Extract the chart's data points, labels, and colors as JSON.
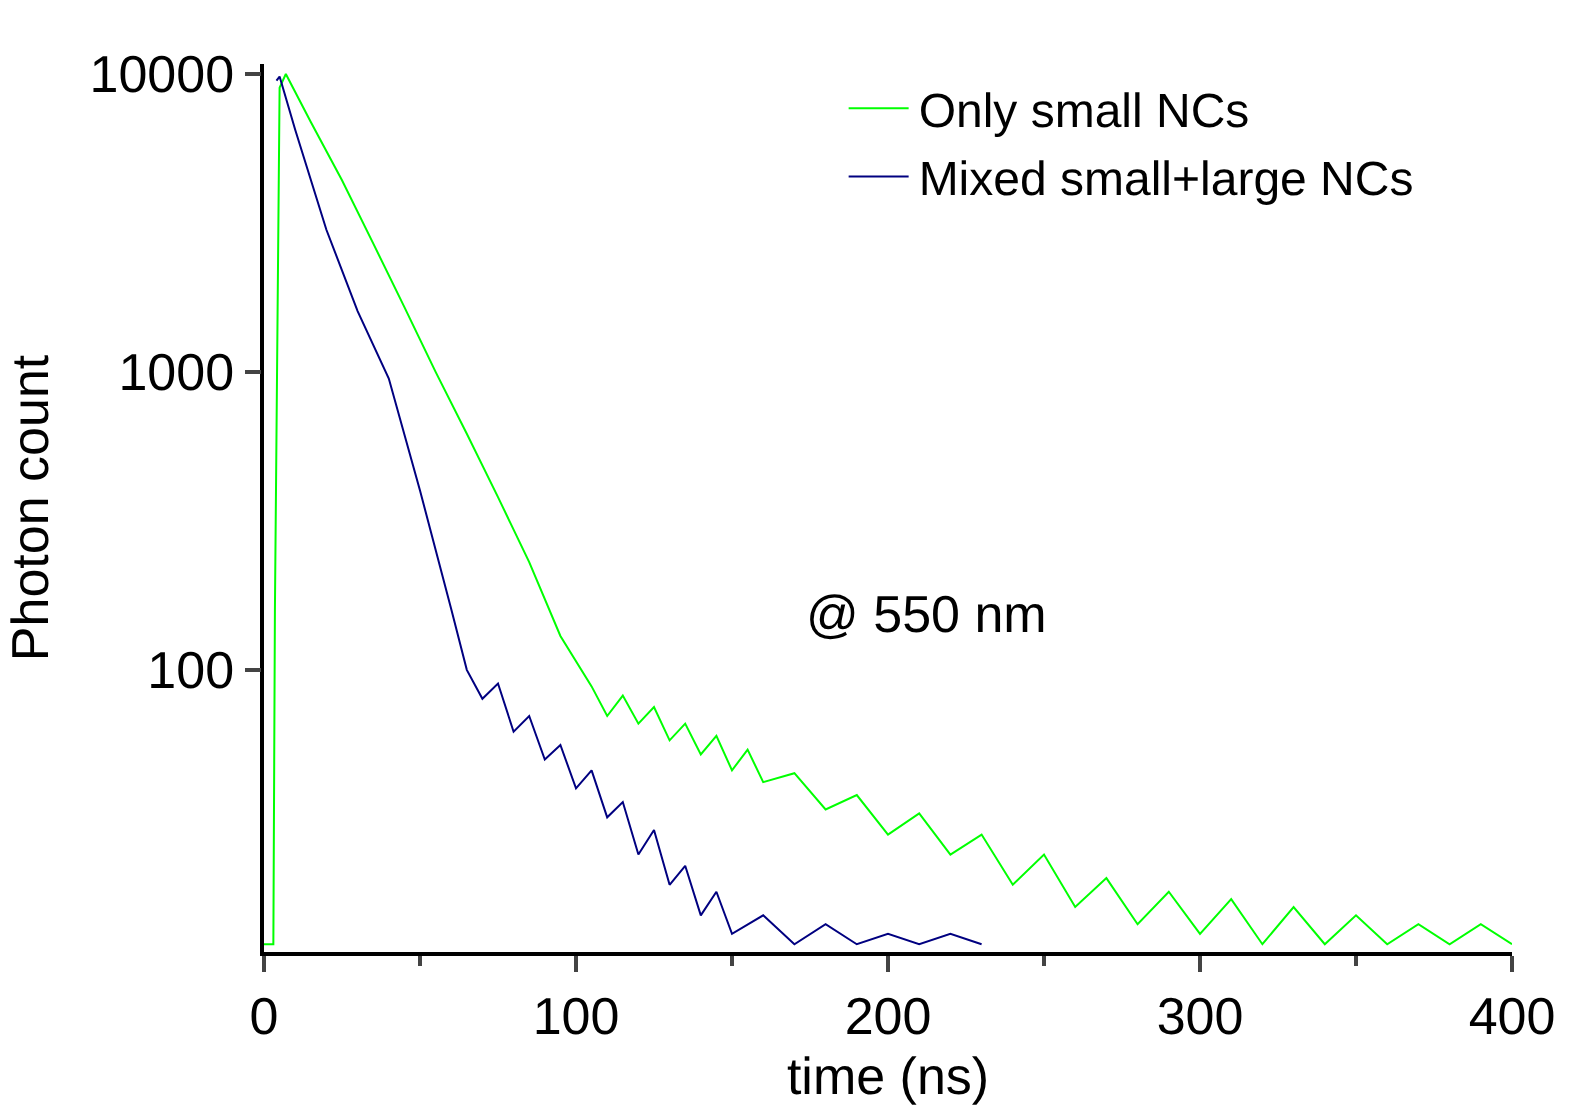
{
  "chart_data": {
    "type": "line",
    "xlabel": "time (ns)",
    "ylabel": "Photon count",
    "log": "y",
    "xlim": [
      0,
      400
    ],
    "xticks": [
      0,
      100,
      200,
      300,
      400
    ],
    "ylim": [
      11.3,
      10800
    ],
    "yticks": [
      100,
      1000,
      10000
    ],
    "legend": "top right",
    "marker": "none",
    "line_style": "solid",
    "annotations": [
      "@ 550 nm"
    ],
    "series": [
      {
        "name": "Only small NCs",
        "color": "#00ff00",
        "x": [
          0,
          3,
          3.5,
          5,
          7,
          15,
          25,
          35,
          45,
          55,
          65,
          75,
          85,
          95,
          105,
          110,
          115,
          120,
          125,
          130,
          135,
          140,
          145,
          150,
          155,
          160,
          170,
          180,
          190,
          200,
          210,
          220,
          230,
          240,
          250,
          260,
          270,
          280,
          290,
          300,
          310,
          320,
          330,
          340,
          350,
          360,
          370,
          380,
          390,
          400
        ],
        "values": [
          12,
          12,
          160,
          9000,
          10000,
          6900,
          4400,
          2700,
          1650,
          1000,
          620,
          380,
          230,
          130,
          88,
          70,
          82,
          66,
          75,
          58,
          66,
          52,
          60,
          46,
          54,
          42,
          45,
          34,
          38,
          28,
          33,
          24,
          28,
          19,
          24,
          16,
          20,
          14,
          18,
          13,
          17,
          12,
          16,
          12,
          15,
          12,
          14,
          12,
          14,
          12
        ]
      },
      {
        "name": "Mixed small+large NCs",
        "color": "#000080",
        "x": [
          4,
          5,
          10,
          20,
          30,
          40,
          50,
          60,
          65,
          70,
          75,
          80,
          85,
          90,
          95,
          100,
          105,
          110,
          115,
          120,
          125,
          130,
          135,
          140,
          145,
          150,
          160,
          170,
          180,
          190,
          200,
          210,
          220,
          230
        ],
        "values": [
          9500,
          9800,
          6500,
          3000,
          1600,
          950,
          400,
          160,
          100,
          80,
          90,
          62,
          70,
          50,
          56,
          40,
          46,
          32,
          36,
          24,
          29,
          19,
          22,
          15,
          18,
          13,
          15,
          12,
          14,
          12,
          13,
          12,
          13,
          12
        ]
      }
    ]
  }
}
